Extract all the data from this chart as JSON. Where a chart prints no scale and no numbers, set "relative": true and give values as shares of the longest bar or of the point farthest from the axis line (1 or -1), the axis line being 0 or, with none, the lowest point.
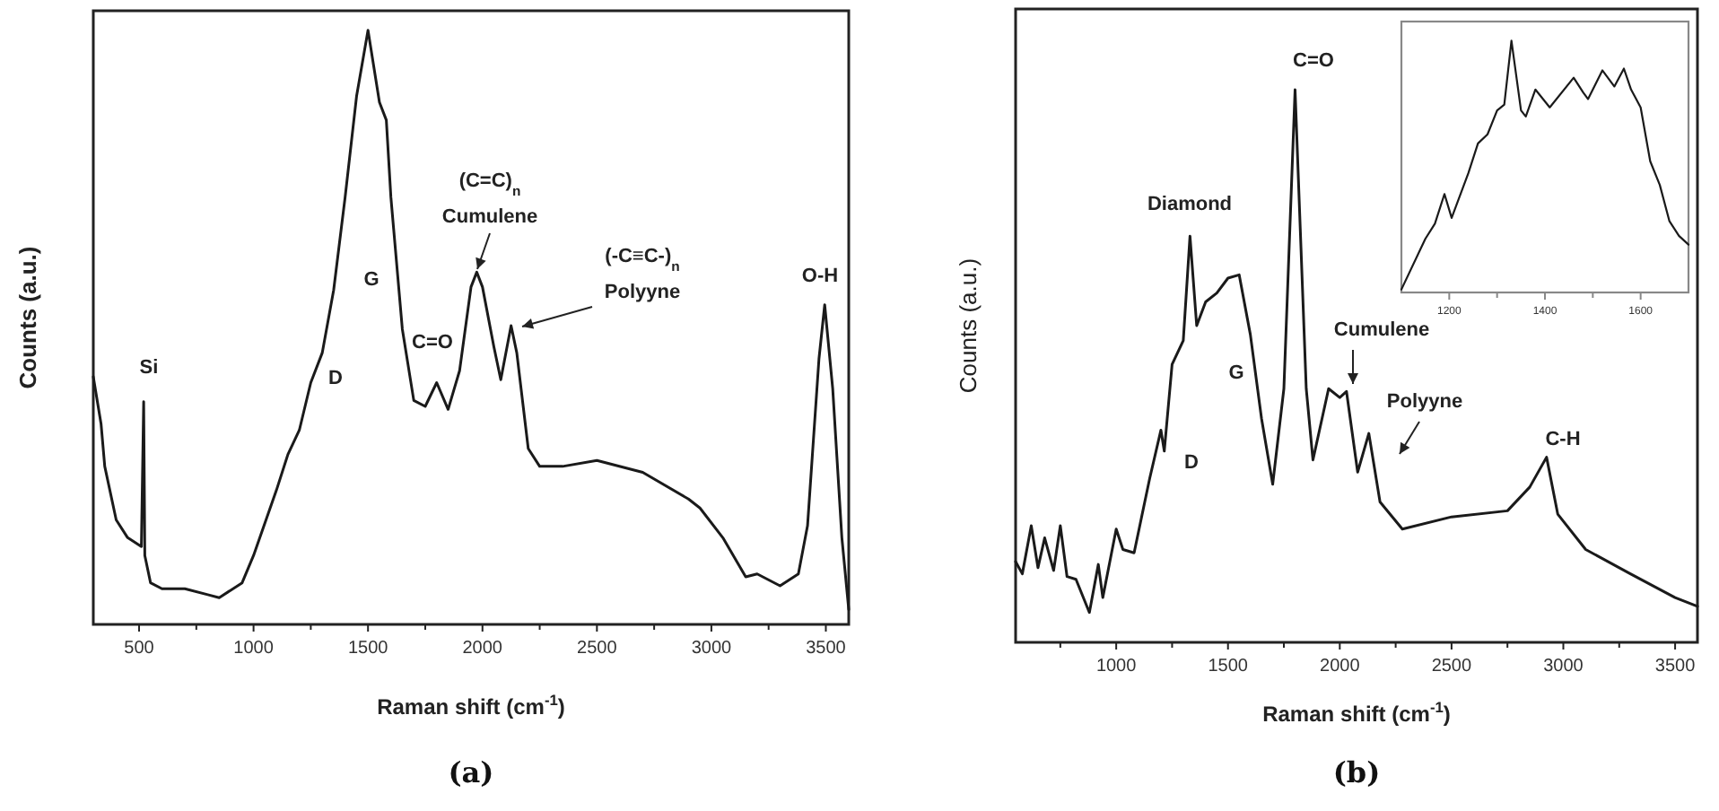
{
  "chart_data": [
    {
      "type": "line",
      "relative": true,
      "color": "#1a1a1a",
      "xlabel": "Raman shift (cm$^{-1}$)",
      "ylabel": "Counts (a.u.)",
      "xlim": [
        300,
        3600
      ],
      "xticks": [
        500,
        {
          "value": 750,
          "label": null
        },
        1000,
        {
          "value": 1250,
          "label": null
        },
        1500,
        {
          "value": 1750,
          "label": null
        },
        2000,
        {
          "value": 2250,
          "label": null
        },
        2500,
        {
          "value": 2750,
          "label": null
        },
        3000,
        {
          "value": 3250,
          "label": null
        },
        3500
      ],
      "x": [
        300,
        334,
        350,
        400,
        450,
        510,
        520,
        525,
        550,
        600,
        700,
        800,
        850,
        950,
        1000,
        1100,
        1150,
        1200,
        1250,
        1300,
        1350,
        1400,
        1450,
        1500,
        1550,
        1580,
        1600,
        1650,
        1700,
        1750,
        1800,
        1850,
        1900,
        1950,
        1975,
        2000,
        2050,
        2080,
        2125,
        2150,
        2200,
        2250,
        2350,
        2500,
        2700,
        2900,
        2950,
        3050,
        3150,
        3200,
        3300,
        3380,
        3420,
        3470,
        3495,
        3530,
        3570,
        3600
      ],
      "values": [
        0.417,
        0.337,
        0.266,
        0.176,
        0.146,
        0.131,
        0.375,
        0.116,
        0.07,
        0.06,
        0.06,
        0.05,
        0.045,
        0.07,
        0.116,
        0.226,
        0.286,
        0.327,
        0.407,
        0.457,
        0.563,
        0.719,
        0.889,
        1,
        0.879,
        0.849,
        0.719,
        0.497,
        0.377,
        0.367,
        0.407,
        0.362,
        0.427,
        0.568,
        0.593,
        0.568,
        0.467,
        0.412,
        0.503,
        0.457,
        0.296,
        0.266,
        0.266,
        0.276,
        0.256,
        0.211,
        0.196,
        0.146,
        0.08,
        0.085,
        0.065,
        0.085,
        0.166,
        0.447,
        0.538,
        0.397,
        0.146,
        0.025
      ],
      "annotations": [
        "Si",
        "D",
        "G",
        "C=O",
        "(C=C)$_{n}$\nCumulene",
        "(-C≡C-)$_{n}$\nPolyyne",
        "O-H",
        "(a)"
      ]
    },
    {
      "type": "line",
      "relative": true,
      "color": "#1a1a1a",
      "xlabel": "Raman shift (cm$^{-1}$)",
      "ylabel": "Counts (a.u.)",
      "xlim": [
        550,
        3600
      ],
      "xticks": [
        {
          "value": 750,
          "label": null
        },
        1000,
        {
          "value": 1250,
          "label": null
        },
        1500,
        {
          "value": 1750,
          "label": null
        },
        2000,
        {
          "value": 2250,
          "label": null
        },
        2500,
        {
          "value": 2750,
          "label": null
        },
        3000,
        {
          "value": 3250,
          "label": null
        },
        3500
      ],
      "x": [
        550,
        580,
        620,
        650,
        680,
        720,
        750,
        780,
        820,
        880,
        920,
        940,
        1000,
        1030,
        1080,
        1150,
        1200,
        1215,
        1250,
        1300,
        1330,
        1360,
        1400,
        1450,
        1500,
        1550,
        1600,
        1650,
        1700,
        1750,
        1800,
        1850,
        1880,
        1950,
        2000,
        2030,
        2080,
        2130,
        2180,
        2280,
        2500,
        2750,
        2850,
        2925,
        2975,
        3100,
        3300,
        3500,
        3600
      ],
      "values": [
        0.146,
        0.124,
        0.211,
        0.135,
        0.189,
        0.13,
        0.211,
        0.119,
        0.114,
        0.054,
        0.141,
        0.081,
        0.205,
        0.168,
        0.162,
        0.297,
        0.384,
        0.346,
        0.503,
        0.546,
        0.735,
        0.573,
        0.616,
        0.632,
        0.659,
        0.665,
        0.557,
        0.405,
        0.286,
        0.459,
        1,
        0.459,
        0.33,
        0.459,
        0.443,
        0.454,
        0.308,
        0.378,
        0.254,
        0.205,
        0.227,
        0.238,
        0.281,
        0.335,
        0.232,
        0.168,
        0.124,
        0.081,
        0.065
      ],
      "annotations": [
        "Diamond",
        "G",
        "D",
        "C=O",
        "Cumulene",
        "Polyyne",
        "C-H",
        "(b)"
      ]
    },
    {
      "type": "line",
      "relative": true,
      "color": "#1a1a1a",
      "xlim": [
        1100,
        1700
      ],
      "xticks": [
        1200,
        {
          "value": 1300,
          "label": null
        },
        1400,
        {
          "value": 1500,
          "label": null
        },
        1600
      ],
      "x": [
        1100,
        1150,
        1170,
        1190,
        1205,
        1240,
        1260,
        1280,
        1300,
        1315,
        1330,
        1350,
        1360,
        1380,
        1410,
        1460,
        1480,
        1490,
        1520,
        1545,
        1565,
        1580,
        1600,
        1620,
        1640,
        1660,
        1680,
        1700
      ],
      "values": [
        0.012,
        0.213,
        0.273,
        0.391,
        0.296,
        0.474,
        0.592,
        0.628,
        0.723,
        0.746,
        1,
        0.723,
        0.699,
        0.806,
        0.735,
        0.853,
        0.794,
        0.768,
        0.882,
        0.818,
        0.889,
        0.806,
        0.735,
        0.521,
        0.427,
        0.284,
        0.225,
        0.19
      ]
    }
  ]
}
